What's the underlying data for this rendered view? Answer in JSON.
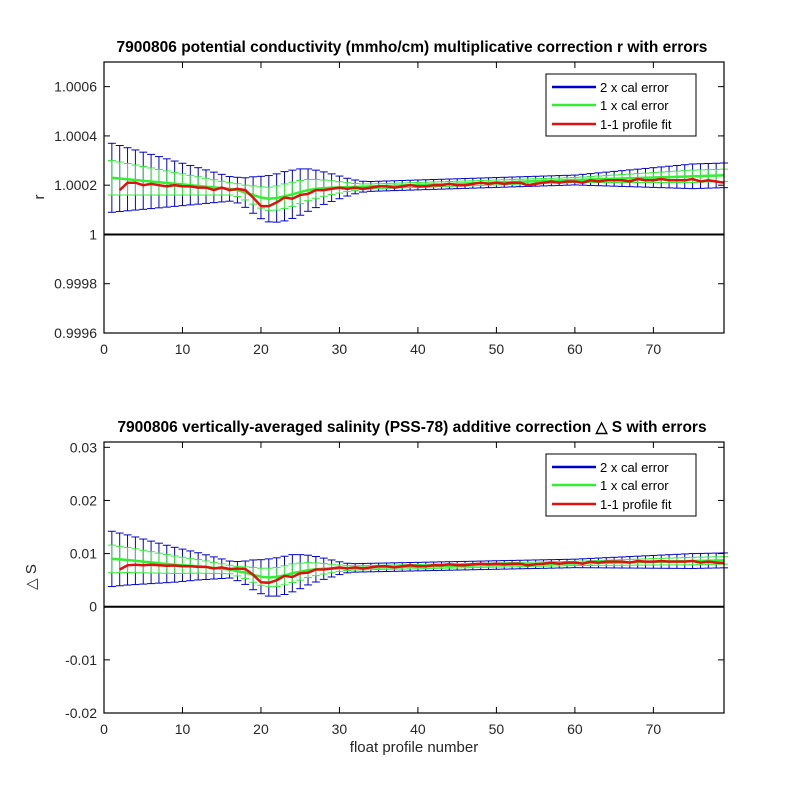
{
  "colors": {
    "two_x_cal_error": "#0000cc",
    "one_x_cal_error": "#33ee33",
    "profile_fit": "#e01010",
    "reference_line": "#000000"
  },
  "chart_data": [
    {
      "type": "line",
      "title": "7900806 potential conductivity (mmho/cm) multiplicative correction r with errors",
      "xlabel": "",
      "ylabel": "r",
      "xlim": [
        0,
        79
      ],
      "ylim": [
        0.9996,
        1.0007
      ],
      "x_ticks": [
        "0",
        "10",
        "20",
        "30",
        "40",
        "50",
        "60",
        "70"
      ],
      "y_ticks": [
        "0.9996",
        "0.9998",
        "1",
        "1.0002",
        "1.0004",
        "1.0006"
      ],
      "legend_position": "top-right",
      "series": [
        {
          "name": "2 x cal error",
          "role": "error_2x"
        },
        {
          "name": "1 x cal error",
          "role": "error_1x"
        },
        {
          "name": "1-1 profile fit",
          "role": "fit"
        }
      ],
      "x": [
        1,
        2,
        3,
        4,
        5,
        6,
        7,
        8,
        9,
        10,
        11,
        12,
        13,
        14,
        15,
        16,
        17,
        18,
        19,
        20,
        21,
        22,
        23,
        24,
        25,
        26,
        27,
        28,
        29,
        30,
        31,
        32,
        33,
        34,
        35,
        36,
        37,
        38,
        39,
        40,
        41,
        42,
        43,
        44,
        45,
        46,
        47,
        48,
        49,
        50,
        51,
        52,
        53,
        54,
        55,
        56,
        57,
        58,
        59,
        60,
        61,
        62,
        63,
        64,
        65,
        66,
        67,
        68,
        69,
        70,
        71,
        72,
        73,
        74,
        75,
        76,
        77,
        78,
        79
      ],
      "fit_mean": [
        1.00023,
        1.000227,
        1.000224,
        1.000221,
        1.000218,
        1.000215,
        1.000212,
        1.000209,
        1.000206,
        1.000203,
        1.0002,
        1.000197,
        1.000194,
        1.000191,
        1.000188,
        1.000185,
        1.00018,
        1.00017,
        1.00016,
        1.00015,
        1.000145,
        1.000148,
        1.000155,
        1.000163,
        1.000172,
        1.00018,
        1.000185,
        1.000188,
        1.00019,
        1.000191,
        1.000192,
        1.000193,
        1.000194,
        1.000195,
        1.000196,
        1.000197,
        1.000198,
        1.000199,
        1.0002,
        1.000201,
        1.000202,
        1.000203,
        1.000204,
        1.000205,
        1.000206,
        1.000207,
        1.000208,
        1.000209,
        1.00021,
        1.000211,
        1.000212,
        1.000213,
        1.000214,
        1.000215,
        1.000216,
        1.000217,
        1.000218,
        1.000219,
        1.00022,
        1.000221,
        1.000222,
        1.000223,
        1.000224,
        1.000225,
        1.000226,
        1.000227,
        1.000228,
        1.000229,
        1.00023,
        1.000231,
        1.000232,
        1.000233,
        1.000234,
        1.000235,
        1.000236,
        1.000237,
        1.000238,
        1.000239,
        1.00024
      ],
      "cal_error": [
        7e-05,
        6.7e-05,
        6.4e-05,
        6.1e-05,
        5.8e-05,
        5.5e-05,
        5.2e-05,
        4.9e-05,
        4.6e-05,
        4.3e-05,
        4e-05,
        3.7e-05,
        3.4e-05,
        3.1e-05,
        2.8e-05,
        2.5e-05,
        2.6e-05,
        3e-05,
        3.7e-05,
        4.3e-05,
        4.7e-05,
        4.9e-05,
        5e-05,
        4.9e-05,
        4.7e-05,
        4.3e-05,
        3.8e-05,
        3.3e-05,
        2.8e-05,
        2.3e-05,
        1.8e-05,
        1.4e-05,
        1.1e-05,
        1e-05,
        1e-05,
        1e-05,
        1e-05,
        1e-05,
        1e-05,
        1e-05,
        1e-05,
        1e-05,
        1e-05,
        1e-05,
        1e-05,
        1e-05,
        1e-05,
        1e-05,
        1e-05,
        1e-05,
        1e-05,
        1e-05,
        1e-05,
        1e-05,
        1e-05,
        1e-05,
        1e-05,
        1e-05,
        1e-05,
        1e-05,
        1.1e-05,
        1.2e-05,
        1.3e-05,
        1.4e-05,
        1.5e-05,
        1.6e-05,
        1.7e-05,
        1.8e-05,
        1.9e-05,
        2e-05,
        2.1e-05,
        2.2e-05,
        2.3e-05,
        2.4e-05,
        2.5e-05,
        2.5e-05,
        2.5e-05,
        2.5e-05,
        2.5e-05
      ],
      "fit_x": [
        2,
        3,
        4,
        5,
        6,
        7,
        8,
        9,
        10,
        11,
        12,
        13,
        14,
        15,
        16,
        17,
        18,
        19,
        20,
        21,
        22,
        23,
        24,
        25,
        26,
        27,
        28,
        29,
        30,
        31,
        32,
        33,
        34,
        35,
        36,
        37,
        38,
        39,
        40,
        41,
        42,
        43,
        44,
        45,
        46,
        47,
        48,
        49,
        50,
        51,
        52,
        53,
        54,
        55,
        56,
        57,
        58,
        59,
        60,
        61,
        62,
        63,
        64,
        65,
        66,
        67,
        68,
        69,
        70,
        71,
        72,
        73,
        74,
        75,
        76,
        77,
        78,
        79
      ],
      "fit_values": [
        1.00018,
        1.00021,
        1.00021,
        1.0002,
        1.000205,
        1.0002,
        1.000195,
        1.0002,
        1.000195,
        1.000195,
        1.00019,
        1.00019,
        1.00018,
        1.00019,
        1.00018,
        1.000185,
        1.00018,
        1.00015,
        1.000115,
        1.000115,
        1.00013,
        1.00015,
        1.000145,
        1.00016,
        1.000165,
        1.00018,
        1.00018,
        1.000185,
        1.00019,
        1.000185,
        1.00019,
        1.000185,
        1.00019,
        1.000195,
        1.000195,
        1.00019,
        1.000195,
        1.0002,
        1.000195,
        1.000195,
        1.0002,
        1.0002,
        1.000205,
        1.0002,
        1.0002,
        1.000205,
        1.00021,
        1.000205,
        1.00021,
        1.000205,
        1.00021,
        1.00021,
        1.0002,
        1.000205,
        1.00021,
        1.000215,
        1.00021,
        1.000215,
        1.000215,
        1.00021,
        1.00022,
        1.000215,
        1.00022,
        1.00022,
        1.00022,
        1.000215,
        1.000225,
        1.00022,
        1.00022,
        1.000225,
        1.00022,
        1.00022,
        1.00022,
        1.000225,
        1.000215,
        1.00022,
        1.000215,
        1.00021
      ],
      "reference_line": 1
    },
    {
      "type": "line",
      "title": "7900806 vertically-averaged salinity (PSS-78) additive correction △ S with errors",
      "xlabel": "float profile number",
      "ylabel": "△ S",
      "xlim": [
        0,
        79
      ],
      "ylim": [
        -0.02,
        0.031
      ],
      "x_ticks": [
        "0",
        "10",
        "20",
        "30",
        "40",
        "50",
        "60",
        "70"
      ],
      "y_ticks": [
        "-0.02",
        "-0.01",
        "0",
        "0.01",
        "0.02",
        "0.03"
      ],
      "legend_position": "top-right",
      "series": [
        {
          "name": "2 x cal error",
          "role": "error_2x"
        },
        {
          "name": "1 x cal error",
          "role": "error_1x"
        },
        {
          "name": "1-1 profile fit",
          "role": "fit"
        }
      ],
      "x": [
        1,
        2,
        3,
        4,
        5,
        6,
        7,
        8,
        9,
        10,
        11,
        12,
        13,
        14,
        15,
        16,
        17,
        18,
        19,
        20,
        21,
        22,
        23,
        24,
        25,
        26,
        27,
        28,
        29,
        30,
        31,
        32,
        33,
        34,
        35,
        36,
        37,
        38,
        39,
        40,
        41,
        42,
        43,
        44,
        45,
        46,
        47,
        48,
        49,
        50,
        51,
        52,
        53,
        54,
        55,
        56,
        57,
        58,
        59,
        60,
        61,
        62,
        63,
        64,
        65,
        66,
        67,
        68,
        69,
        70,
        71,
        72,
        73,
        74,
        75,
        76,
        77,
        78,
        79
      ],
      "fit_mean": [
        0.009,
        0.0089,
        0.0088,
        0.00865,
        0.0085,
        0.00835,
        0.0082,
        0.00805,
        0.0079,
        0.0078,
        0.0077,
        0.0076,
        0.00745,
        0.0073,
        0.00715,
        0.007,
        0.0067,
        0.0064,
        0.006,
        0.00565,
        0.0055,
        0.0056,
        0.0059,
        0.0063,
        0.0066,
        0.0069,
        0.00705,
        0.00715,
        0.0072,
        0.00725,
        0.00728,
        0.00731,
        0.00734,
        0.00737,
        0.0074,
        0.00743,
        0.00746,
        0.00749,
        0.00752,
        0.00755,
        0.00758,
        0.00761,
        0.00764,
        0.00767,
        0.0077,
        0.00773,
        0.00776,
        0.00779,
        0.00782,
        0.00785,
        0.00788,
        0.00791,
        0.00794,
        0.00797,
        0.008,
        0.00803,
        0.00806,
        0.00809,
        0.00812,
        0.00815,
        0.00818,
        0.00821,
        0.00824,
        0.00827,
        0.0083,
        0.00833,
        0.00836,
        0.00839,
        0.00842,
        0.00845,
        0.00848,
        0.00851,
        0.00854,
        0.00857,
        0.0086,
        0.00863,
        0.00866,
        0.00869,
        0.00872
      ],
      "cal_error": [
        0.0026,
        0.00248,
        0.00236,
        0.00224,
        0.00212,
        0.002,
        0.00188,
        0.00176,
        0.00164,
        0.00152,
        0.0014,
        0.00128,
        0.00116,
        0.00104,
        0.00092,
        0.0008,
        0.0009,
        0.0011,
        0.0014,
        0.0016,
        0.00175,
        0.0018,
        0.0018,
        0.00175,
        0.0016,
        0.0014,
        0.0012,
        0.001,
        0.0008,
        0.0006,
        0.00045,
        0.0004,
        0.0004,
        0.0004,
        0.0004,
        0.0004,
        0.0004,
        0.0004,
        0.0004,
        0.0004,
        0.0004,
        0.0004,
        0.0004,
        0.0004,
        0.0004,
        0.0004,
        0.0004,
        0.0004,
        0.0004,
        0.0004,
        0.0004,
        0.0004,
        0.0004,
        0.0004,
        0.0004,
        0.0004,
        0.0004,
        0.0004,
        0.0004,
        0.0004,
        0.00042,
        0.00044,
        0.00046,
        0.00048,
        0.0005,
        0.00052,
        0.00054,
        0.00056,
        0.00058,
        0.0006,
        0.00062,
        0.00064,
        0.00066,
        0.00068,
        0.0007,
        0.0007,
        0.0007,
        0.0007,
        0.0007
      ],
      "fit_x": [
        2,
        3,
        4,
        5,
        6,
        7,
        8,
        9,
        10,
        11,
        12,
        13,
        14,
        15,
        16,
        17,
        18,
        19,
        20,
        21,
        22,
        23,
        24,
        25,
        26,
        27,
        28,
        29,
        30,
        31,
        32,
        33,
        34,
        35,
        36,
        37,
        38,
        39,
        40,
        41,
        42,
        43,
        44,
        45,
        46,
        47,
        48,
        49,
        50,
        51,
        52,
        53,
        54,
        55,
        56,
        57,
        58,
        59,
        60,
        61,
        62,
        63,
        64,
        65,
        66,
        67,
        68,
        69,
        70,
        71,
        72,
        73,
        74,
        75,
        76,
        77,
        78,
        79
      ],
      "fit_values": [
        0.007,
        0.0078,
        0.0079,
        0.0078,
        0.0079,
        0.0078,
        0.0077,
        0.00775,
        0.0076,
        0.0076,
        0.0075,
        0.0075,
        0.0072,
        0.0074,
        0.0071,
        0.0072,
        0.0071,
        0.006,
        0.0046,
        0.0045,
        0.005,
        0.0058,
        0.0056,
        0.0063,
        0.0064,
        0.007,
        0.007,
        0.0072,
        0.0074,
        0.0072,
        0.0074,
        0.0072,
        0.0074,
        0.0076,
        0.0076,
        0.0074,
        0.0076,
        0.0078,
        0.0076,
        0.0076,
        0.0078,
        0.0078,
        0.008,
        0.0078,
        0.0078,
        0.008,
        0.0081,
        0.008,
        0.0081,
        0.008,
        0.0081,
        0.0081,
        0.0078,
        0.008,
        0.0081,
        0.0083,
        0.0081,
        0.0083,
        0.0083,
        0.0081,
        0.0085,
        0.0083,
        0.0085,
        0.0085,
        0.0085,
        0.0083,
        0.0086,
        0.0085,
        0.0085,
        0.0086,
        0.0085,
        0.0085,
        0.0085,
        0.0086,
        0.0083,
        0.0085,
        0.0083,
        0.0082
      ],
      "reference_line": 0
    }
  ]
}
